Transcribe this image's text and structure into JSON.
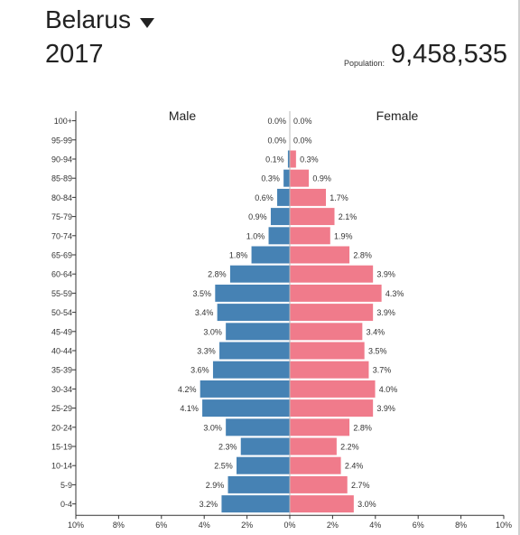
{
  "header": {
    "country": "Belarus",
    "year": "2017",
    "population_label": "Population:",
    "population_value": "9,458,535"
  },
  "colors": {
    "male": "#4682b4",
    "female": "#f07b8b"
  },
  "chart_data": {
    "type": "bar",
    "orientation": "horizontal population pyramid",
    "series_labels": [
      "Male",
      "Female"
    ],
    "categories": [
      "100+",
      "95-99",
      "90-94",
      "85-89",
      "80-84",
      "75-79",
      "70-74",
      "65-69",
      "60-64",
      "55-59",
      "50-54",
      "45-49",
      "40-44",
      "35-39",
      "30-34",
      "25-29",
      "20-24",
      "15-19",
      "10-14",
      "5-9",
      "0-4"
    ],
    "series": [
      {
        "name": "Male",
        "values": [
          0.0,
          0.0,
          0.1,
          0.3,
          0.6,
          0.9,
          1.0,
          1.8,
          2.8,
          3.5,
          3.4,
          3.0,
          3.3,
          3.6,
          4.2,
          4.1,
          3.0,
          2.3,
          2.5,
          2.9,
          3.2
        ],
        "labels": [
          "0.0%",
          "0.0%",
          "0.1%",
          "0.3%",
          "0.6%",
          "0.9%",
          "1.0%",
          "1.8%",
          "2.8%",
          "3.5%",
          "3.4%",
          "3.0%",
          "3.3%",
          "3.6%",
          "4.2%",
          "4.1%",
          "3.0%",
          "2.3%",
          "2.5%",
          "2.9%",
          "3.2%"
        ]
      },
      {
        "name": "Female",
        "values": [
          0.0,
          0.0,
          0.3,
          0.9,
          1.7,
          2.1,
          1.9,
          2.8,
          3.9,
          4.3,
          3.9,
          3.4,
          3.5,
          3.7,
          4.0,
          3.9,
          2.8,
          2.2,
          2.4,
          2.7,
          3.0
        ],
        "labels": [
          "0.0%",
          "0.0%",
          "0.3%",
          "0.9%",
          "1.7%",
          "2.1%",
          "1.9%",
          "2.8%",
          "3.9%",
          "4.3%",
          "3.9%",
          "3.4%",
          "3.5%",
          "3.7%",
          "4.0%",
          "3.9%",
          "2.8%",
          "2.2%",
          "2.4%",
          "2.7%",
          "3.0%"
        ]
      }
    ],
    "xlim": [
      -10,
      10
    ],
    "x_tick_values": [
      -10,
      -8,
      -6,
      -4,
      -2,
      0,
      2,
      4,
      6,
      8,
      10
    ],
    "x_tick_labels": [
      "10%",
      "8%",
      "6%",
      "4%",
      "2%",
      "0%",
      "2%",
      "4%",
      "6%",
      "8%",
      "10%"
    ],
    "grid": false
  }
}
